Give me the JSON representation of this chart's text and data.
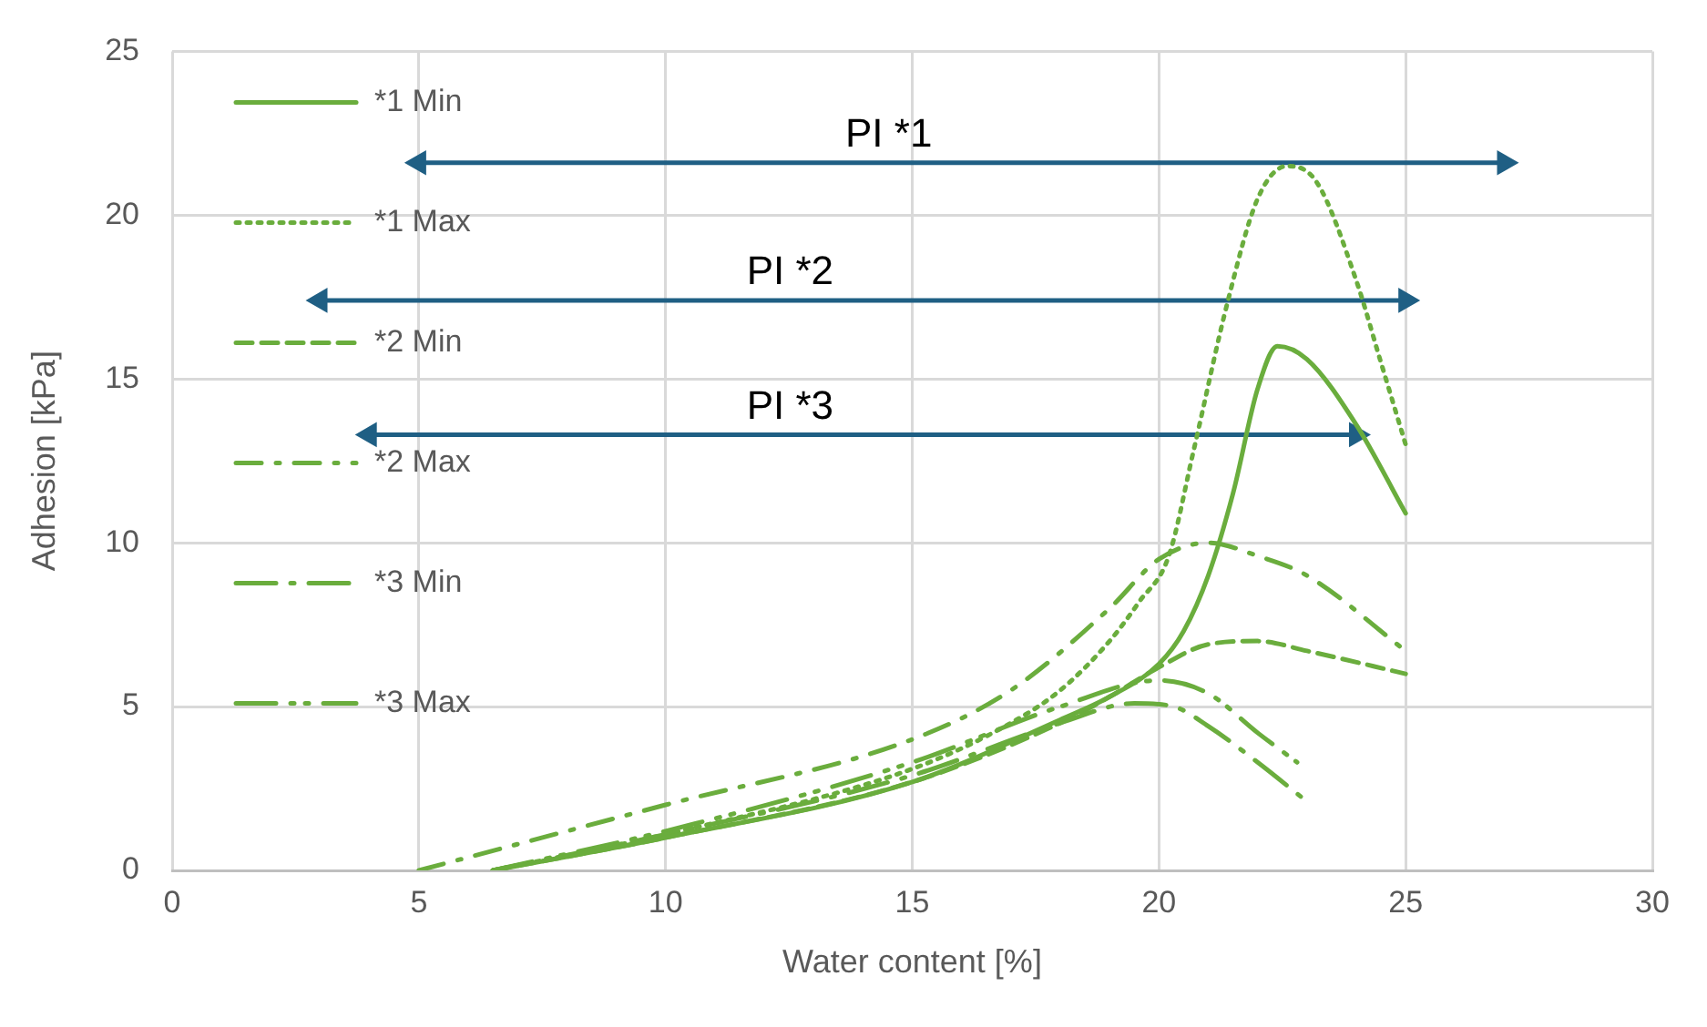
{
  "chart_data": {
    "type": "line",
    "xlabel": "Water content [%]",
    "ylabel": "Adhesion [kPa]",
    "xlim": [
      0,
      30
    ],
    "xticks": [
      0,
      5,
      10,
      15,
      20,
      25,
      30
    ],
    "ylim": [
      0,
      25
    ],
    "yticks": [
      0,
      5,
      10,
      15,
      20,
      25
    ],
    "grid": true,
    "legend": "top left",
    "marker": "none",
    "series": [
      {
        "name": "*1 Min",
        "color": "#6aad3d",
        "line_style": "solid",
        "x": [
          6.5,
          10,
          15,
          18,
          19,
          20,
          20.5,
          21,
          21.5,
          22,
          22.4,
          23,
          24,
          25
        ],
        "values": [
          0,
          1.0,
          2.7,
          4.6,
          5.3,
          6.3,
          7.3,
          9,
          11.5,
          14.7,
          16,
          15.6,
          13.6,
          10.9
        ]
      },
      {
        "name": "*1 Max",
        "color": "#6aad3d",
        "line_style": "dotted",
        "x": [
          6.5,
          10,
          15,
          17,
          18,
          19,
          19.6,
          20.2,
          20.7,
          21.4,
          22,
          22.6,
          23.2,
          24,
          24.5,
          25
        ],
        "values": [
          0,
          1.1,
          3.1,
          4.5,
          5.5,
          7,
          8.2,
          9.6,
          12.8,
          17.4,
          20.5,
          21.5,
          21,
          18,
          15.5,
          13
        ]
      },
      {
        "name": "*2 Min",
        "color": "#6aad3d",
        "line_style": "dashed",
        "x": [
          6.5,
          10,
          15,
          18,
          19,
          20,
          21,
          22,
          23,
          25
        ],
        "values": [
          0,
          1.0,
          2.7,
          4.5,
          5.3,
          6.2,
          6.9,
          7,
          6.7,
          6.0
        ]
      },
      {
        "name": "*2 Max",
        "color": "#6aad3d",
        "line_style": "dashdot",
        "x": [
          5,
          10,
          15,
          17,
          19,
          20,
          21,
          22,
          23,
          25
        ],
        "values": [
          0,
          2.0,
          4.0,
          5.5,
          8,
          9.5,
          10,
          9.6,
          9,
          6.7
        ]
      },
      {
        "name": "*3 Min",
        "color": "#6aad3d",
        "line_style": "longdashdot",
        "x": [
          6.5,
          10,
          15,
          18,
          19.5,
          20.3,
          21,
          22,
          23
        ],
        "values": [
          0,
          1.1,
          2.9,
          4.5,
          5.1,
          5,
          4.4,
          3.3,
          2.1
        ]
      },
      {
        "name": "*3 Max",
        "color": "#6aad3d",
        "line_style": "longdashdotdot",
        "x": [
          6.5,
          10,
          15,
          18,
          20,
          21,
          22,
          22.8
        ],
        "values": [
          0,
          1.2,
          3.3,
          5,
          5.8,
          5.4,
          4.2,
          3.3
        ]
      },
      {
        "name": "PI *1",
        "color": "#1f5f84",
        "line_style": "solid",
        "marker": "triangle",
        "x": [
          5,
          27
        ],
        "values": [
          21.6,
          21.6
        ]
      },
      {
        "name": "PI *2",
        "color": "#1f5f84",
        "line_style": "solid",
        "marker": "triangle",
        "x": [
          3,
          25
        ],
        "values": [
          17.4,
          17.4
        ]
      },
      {
        "name": "PI *3",
        "color": "#1f5f84",
        "line_style": "solid",
        "marker": "triangle",
        "x": [
          4,
          24
        ],
        "values": [
          13.3,
          13.3
        ]
      }
    ]
  }
}
